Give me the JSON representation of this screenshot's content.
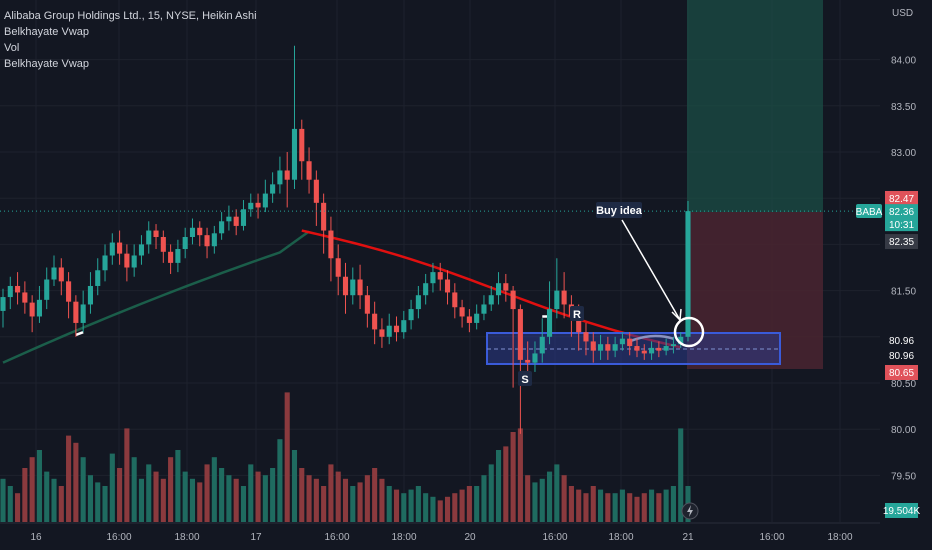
{
  "legend": {
    "title": "Alibaba Group Holdings Ltd., 15, NYSE, Heikin Ashi",
    "line2": "Belkhayate Vwap",
    "line3": "Vol",
    "line4": "Belkhayate Vwap"
  },
  "chart_data": {
    "type": "candlestick",
    "currency": "USD",
    "symbol": "BABA",
    "y_ticks": [
      84.0,
      83.5,
      83.0,
      82.47,
      82.36,
      82.35,
      81.5,
      80.96,
      80.65,
      80.5,
      80.0,
      79.5
    ],
    "y_tick_labels": [
      "84.00",
      "83.50",
      "83.00",
      "81.50",
      "80.50",
      "80.00",
      "79.50"
    ],
    "x_tick_labels": [
      "16",
      "16:00",
      "18:00",
      "17",
      "16:00",
      "18:00",
      "20",
      "16:00",
      "18:00",
      "21",
      "16:00",
      "18:00"
    ],
    "last_price": "82.36",
    "countdown": "10:31",
    "price_badges": [
      "82.47",
      "82.35",
      "80.96",
      "80.96",
      "80.65"
    ],
    "volume_badge": "19.504K",
    "annotations": [
      "Buy idea",
      "R",
      "S"
    ],
    "colors": {
      "up": "#26a69a",
      "down": "#ef5350",
      "vwap_red": "#e01010",
      "vwap_green": "#1b5e4a",
      "box": "#3a5bd9"
    },
    "candles": [
      [
        81.28,
        81.43,
        81.1,
        81.52
      ],
      [
        81.43,
        81.55,
        81.3,
        81.65
      ],
      [
        81.55,
        81.48,
        81.35,
        81.7
      ],
      [
        81.48,
        81.37,
        81.25,
        81.6
      ],
      [
        81.37,
        81.22,
        81.05,
        81.45
      ],
      [
        81.22,
        81.4,
        81.15,
        81.55
      ],
      [
        81.4,
        81.62,
        81.3,
        81.75
      ],
      [
        81.62,
        81.75,
        81.55,
        81.88
      ],
      [
        81.75,
        81.6,
        81.45,
        81.85
      ],
      [
        81.6,
        81.38,
        81.2,
        81.7
      ],
      [
        81.38,
        81.15,
        81.0,
        81.45
      ],
      [
        81.15,
        81.35,
        81.05,
        81.5
      ],
      [
        81.35,
        81.55,
        81.25,
        81.7
      ],
      [
        81.55,
        81.72,
        81.45,
        81.85
      ],
      [
        81.72,
        81.88,
        81.6,
        82.0
      ],
      [
        81.88,
        82.02,
        81.78,
        82.12
      ],
      [
        82.02,
        81.9,
        81.78,
        82.15
      ],
      [
        81.9,
        81.75,
        81.6,
        82.0
      ],
      [
        81.75,
        81.88,
        81.65,
        82.0
      ],
      [
        81.88,
        82.0,
        81.78,
        82.1
      ],
      [
        82.0,
        82.15,
        81.9,
        82.25
      ],
      [
        82.15,
        82.08,
        81.95,
        82.22
      ],
      [
        82.08,
        81.92,
        81.8,
        82.15
      ],
      [
        81.92,
        81.8,
        81.68,
        82.0
      ],
      [
        81.8,
        81.95,
        81.7,
        82.05
      ],
      [
        81.95,
        82.08,
        81.85,
        82.18
      ],
      [
        82.08,
        82.18,
        82.0,
        82.28
      ],
      [
        82.18,
        82.1,
        81.98,
        82.25
      ],
      [
        82.1,
        81.98,
        81.85,
        82.18
      ],
      [
        81.98,
        82.12,
        81.9,
        82.2
      ],
      [
        82.12,
        82.25,
        82.05,
        82.35
      ],
      [
        82.25,
        82.3,
        82.15,
        82.42
      ],
      [
        82.3,
        82.2,
        82.1,
        82.38
      ],
      [
        82.2,
        82.38,
        82.15,
        82.48
      ],
      [
        82.38,
        82.45,
        82.3,
        82.55
      ],
      [
        82.45,
        82.4,
        82.28,
        82.55
      ],
      [
        82.4,
        82.55,
        82.35,
        82.7
      ],
      [
        82.55,
        82.65,
        82.45,
        82.78
      ],
      [
        82.65,
        82.8,
        82.55,
        82.95
      ],
      [
        82.8,
        82.7,
        82.4,
        83.0
      ],
      [
        82.7,
        83.25,
        82.6,
        84.15
      ],
      [
        83.25,
        82.9,
        82.7,
        83.35
      ],
      [
        82.9,
        82.7,
        82.55,
        83.05
      ],
      [
        82.7,
        82.45,
        82.2,
        82.8
      ],
      [
        82.45,
        82.15,
        81.9,
        82.55
      ],
      [
        82.15,
        81.85,
        81.6,
        82.3
      ],
      [
        81.85,
        81.65,
        81.45,
        82.0
      ],
      [
        81.65,
        81.45,
        81.25,
        81.8
      ],
      [
        81.45,
        81.62,
        81.35,
        81.75
      ],
      [
        81.62,
        81.45,
        81.3,
        81.78
      ],
      [
        81.45,
        81.25,
        81.1,
        81.55
      ],
      [
        81.25,
        81.08,
        80.92,
        81.38
      ],
      [
        81.08,
        81.0,
        80.88,
        81.2
      ],
      [
        81.0,
        81.12,
        80.92,
        81.25
      ],
      [
        81.12,
        81.05,
        80.95,
        81.22
      ],
      [
        81.05,
        81.18,
        80.98,
        81.28
      ],
      [
        81.18,
        81.3,
        81.08,
        81.4
      ],
      [
        81.3,
        81.45,
        81.2,
        81.55
      ],
      [
        81.45,
        81.58,
        81.35,
        81.68
      ],
      [
        81.58,
        81.7,
        81.48,
        81.8
      ],
      [
        81.7,
        81.62,
        81.5,
        81.8
      ],
      [
        81.62,
        81.48,
        81.35,
        81.72
      ],
      [
        81.48,
        81.32,
        81.2,
        81.58
      ],
      [
        81.32,
        81.22,
        81.1,
        81.4
      ],
      [
        81.22,
        81.15,
        81.05,
        81.3
      ],
      [
        81.15,
        81.25,
        81.08,
        81.35
      ],
      [
        81.25,
        81.35,
        81.18,
        81.45
      ],
      [
        81.35,
        81.45,
        81.28,
        81.55
      ],
      [
        81.45,
        81.58,
        81.35,
        81.7
      ],
      [
        81.58,
        81.5,
        81.38,
        81.68
      ],
      [
        81.5,
        81.3,
        80.45,
        81.55
      ],
      [
        81.3,
        80.75,
        79.95,
        81.35
      ],
      [
        80.75,
        80.72,
        80.5,
        80.95
      ],
      [
        80.72,
        80.82,
        80.62,
        80.95
      ],
      [
        80.82,
        81.0,
        80.72,
        81.2
      ],
      [
        81.0,
        81.3,
        80.92,
        81.6
      ],
      [
        81.3,
        81.5,
        81.2,
        81.85
      ],
      [
        81.5,
        81.35,
        81.2,
        81.7
      ],
      [
        81.35,
        81.22,
        81.0,
        81.45
      ],
      [
        81.22,
        81.05,
        80.85,
        81.35
      ],
      [
        81.05,
        80.95,
        80.8,
        81.15
      ],
      [
        80.95,
        80.85,
        80.72,
        81.05
      ],
      [
        80.85,
        80.92,
        80.75,
        81.02
      ],
      [
        80.92,
        80.85,
        80.75,
        81.0
      ],
      [
        80.85,
        80.92,
        80.78,
        81.0
      ],
      [
        80.92,
        80.98,
        80.85,
        81.05
      ],
      [
        80.98,
        80.9,
        80.8,
        81.05
      ],
      [
        80.9,
        80.85,
        80.78,
        80.98
      ],
      [
        80.85,
        80.82,
        80.75,
        80.92
      ],
      [
        80.82,
        80.88,
        80.75,
        80.95
      ],
      [
        80.88,
        80.85,
        80.78,
        80.95
      ],
      [
        80.85,
        80.9,
        80.8,
        80.98
      ],
      [
        80.9,
        80.92,
        80.82,
        81.0
      ],
      [
        80.92,
        81.0,
        80.88,
        81.05
      ],
      [
        81.0,
        82.36,
        80.95,
        82.47
      ]
    ],
    "volumes": [
      1.2,
      1.0,
      0.8,
      1.5,
      1.8,
      2.0,
      1.4,
      1.2,
      1.0,
      2.4,
      2.2,
      1.8,
      1.3,
      1.1,
      1.0,
      1.9,
      1.5,
      2.6,
      1.8,
      1.2,
      1.6,
      1.4,
      1.2,
      1.8,
      2.0,
      1.4,
      1.2,
      1.1,
      1.6,
      1.8,
      1.5,
      1.3,
      1.2,
      1.0,
      1.6,
      1.4,
      1.3,
      1.5,
      2.3,
      3.6,
      2.0,
      1.5,
      1.3,
      1.2,
      1.0,
      1.6,
      1.4,
      1.2,
      1.0,
      1.1,
      1.3,
      1.5,
      1.2,
      1.0,
      0.9,
      0.8,
      0.9,
      1.0,
      0.8,
      0.7,
      0.6,
      0.7,
      0.8,
      0.9,
      1.0,
      1.0,
      1.3,
      1.6,
      2.0,
      2.1,
      2.5,
      2.6,
      1.3,
      1.1,
      1.2,
      1.4,
      1.6,
      1.3,
      1.0,
      0.9,
      0.8,
      1.0,
      0.9,
      0.8,
      0.8,
      0.9,
      0.8,
      0.7,
      0.8,
      0.9,
      0.8,
      0.9,
      1.0,
      2.6,
      1.0
    ]
  }
}
